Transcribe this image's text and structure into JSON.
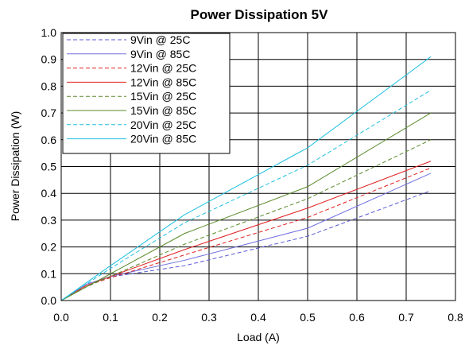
{
  "chart_data": {
    "type": "line",
    "title": "Power Dissipation 5V",
    "xlabel": "Load (A)",
    "ylabel": "Power Dissipation (W)",
    "xlim": [
      0,
      0.8
    ],
    "ylim": [
      0,
      1.0
    ],
    "xticks": [
      "0.0",
      "0.1",
      "0.2",
      "0.3",
      "0.4",
      "0.5",
      "0.6",
      "0.7",
      "0.8"
    ],
    "yticks": [
      "0.0",
      "0.1",
      "0.2",
      "0.3",
      "0.4",
      "0.5",
      "0.6",
      "0.7",
      "0.8",
      "0.9",
      "1.0"
    ],
    "grid": true,
    "legend_position": "top-left",
    "series": [
      {
        "name": "9Vin @ 25C",
        "color": "#5a5ad6",
        "dashed": true,
        "x": [
          0,
          0.05,
          0.1,
          0.25,
          0.5,
          0.75
        ],
        "y": [
          0,
          0.06,
          0.088,
          0.13,
          0.24,
          0.41
        ]
      },
      {
        "name": "9Vin @ 85C",
        "color": "#7070e0",
        "dashed": false,
        "x": [
          0,
          0.05,
          0.1,
          0.25,
          0.5,
          0.75
        ],
        "y": [
          0,
          0.06,
          0.09,
          0.15,
          0.27,
          0.475
        ]
      },
      {
        "name": "12Vin @ 25C",
        "color": "#e02020",
        "dashed": true,
        "x": [
          0,
          0.05,
          0.1,
          0.25,
          0.5,
          0.75
        ],
        "y": [
          0,
          0.055,
          0.085,
          0.17,
          0.31,
          0.495
        ]
      },
      {
        "name": "12Vin @ 85C",
        "color": "#e02020",
        "dashed": false,
        "x": [
          0,
          0.05,
          0.1,
          0.25,
          0.5,
          0.75
        ],
        "y": [
          0,
          0.055,
          0.09,
          0.19,
          0.345,
          0.52
        ]
      },
      {
        "name": "15Vin @ 25C",
        "color": "#5a8a2a",
        "dashed": true,
        "x": [
          0,
          0.05,
          0.1,
          0.25,
          0.5,
          0.75
        ],
        "y": [
          0,
          0.05,
          0.09,
          0.21,
          0.38,
          0.6
        ]
      },
      {
        "name": "15Vin @ 85C",
        "color": "#5a8a2a",
        "dashed": false,
        "x": [
          0,
          0.05,
          0.1,
          0.25,
          0.5,
          0.75
        ],
        "y": [
          0,
          0.05,
          0.1,
          0.25,
          0.425,
          0.7
        ]
      },
      {
        "name": "20Vin @ 25C",
        "color": "#20c0e0",
        "dashed": true,
        "x": [
          0,
          0.05,
          0.1,
          0.25,
          0.5,
          0.75
        ],
        "y": [
          0,
          0.06,
          0.12,
          0.29,
          0.505,
          0.785
        ]
      },
      {
        "name": "20Vin @ 85C",
        "color": "#20c0e0",
        "dashed": false,
        "x": [
          0,
          0.05,
          0.1,
          0.25,
          0.5,
          0.75
        ],
        "y": [
          0,
          0.065,
          0.13,
          0.32,
          0.57,
          0.91
        ]
      }
    ]
  }
}
